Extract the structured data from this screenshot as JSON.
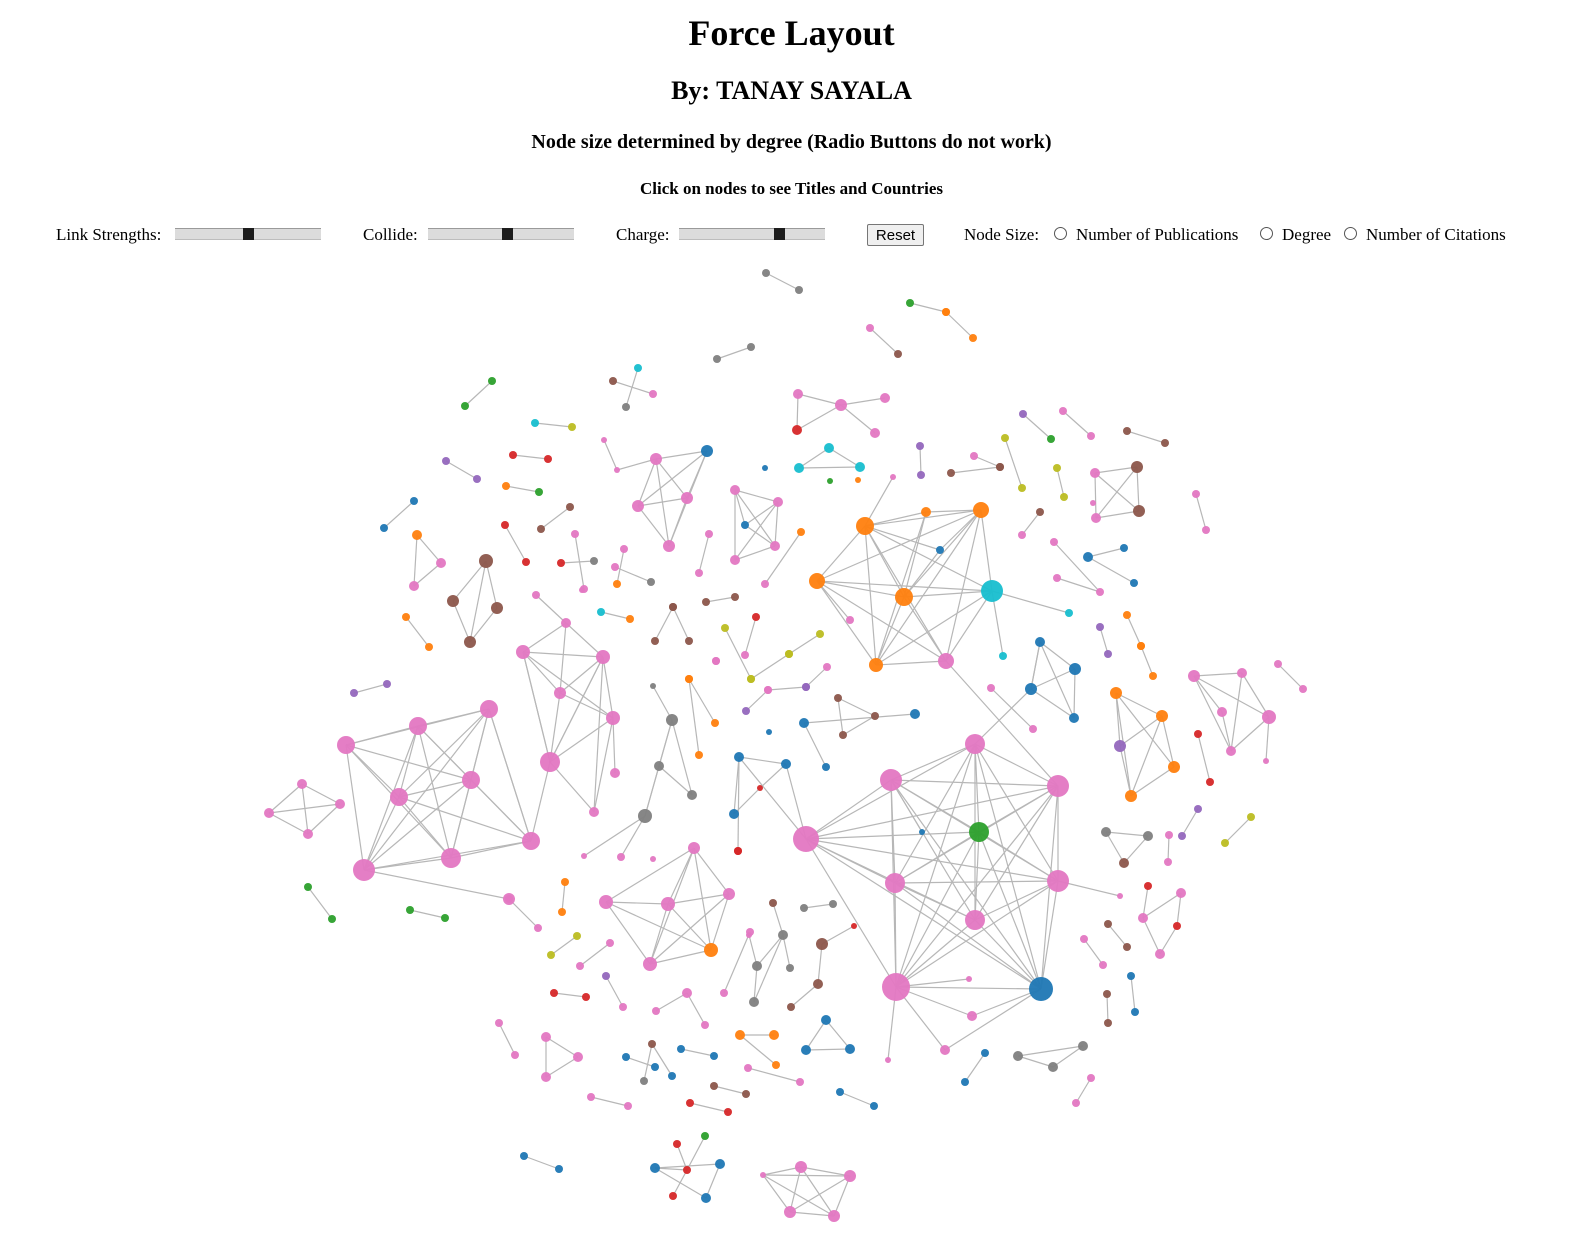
{
  "header": {
    "title": "Force Layout",
    "author": "By: TANAY SAYALA",
    "note": "Node size determined by degree (Radio Buttons do not work)",
    "hint": "Click on nodes to see Titles and Countries"
  },
  "controls": {
    "link_strength": {
      "label": "Link Strengths:",
      "value": 0.5
    },
    "collide": {
      "label": "Collide:",
      "value": 0.55
    },
    "charge": {
      "label": "Charge:",
      "value": 0.7
    },
    "reset_label": "Reset",
    "node_size": {
      "label": "Node Size:",
      "options": [
        "Number of Publications",
        "Degree",
        "Number of Citations"
      ]
    }
  },
  "palette": {
    "pink": "#e377c2",
    "blue": "#1f77b4",
    "orange": "#ff7f0e",
    "green": "#2ca02c",
    "red": "#d62728",
    "purple": "#9467bd",
    "brown": "#8c564b",
    "gray": "#7f7f7f",
    "olive": "#bcbd22",
    "cyan": "#17becf",
    "link": "#b7b7b7"
  }
}
